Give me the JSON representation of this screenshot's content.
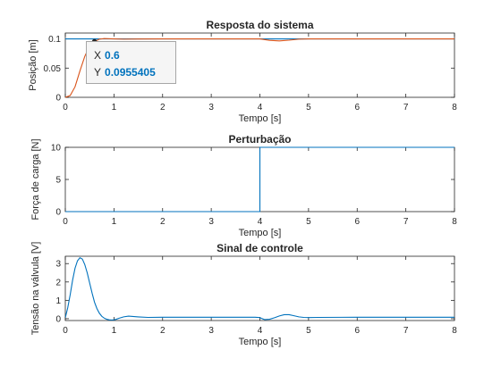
{
  "chart_data": [
    {
      "type": "line",
      "title": "Resposta do sistema",
      "xlabel": "Tempo [s]",
      "ylabel": "Posição [m]",
      "xlim": [
        0,
        8
      ],
      "ylim": [
        0,
        0.11
      ],
      "xticks": [
        0,
        1,
        2,
        3,
        4,
        5,
        6,
        7,
        8
      ],
      "yticks": [
        0,
        0.05,
        0.1
      ],
      "ytick_labels": [
        "0",
        "0.05",
        "0.1"
      ],
      "grid": false,
      "series": [
        {
          "color": "#0072bd",
          "x": [
            0,
            8
          ],
          "y": [
            0.1,
            0.1
          ]
        },
        {
          "color": "#d95319",
          "x": [
            0,
            0.1,
            0.2,
            0.3,
            0.4,
            0.5,
            0.6,
            0.7,
            0.8,
            1.0,
            1.2,
            1.5,
            2.0,
            3.0,
            4.0,
            4.2,
            4.4,
            4.6,
            4.8,
            5.0,
            6.0,
            7.0,
            8.0
          ],
          "y": [
            0,
            0.003,
            0.018,
            0.045,
            0.07,
            0.088,
            0.0955,
            0.0995,
            0.1005,
            0.1,
            0.0995,
            0.0998,
            0.1,
            0.1,
            0.1,
            0.0975,
            0.0965,
            0.0978,
            0.0995,
            0.1,
            0.1,
            0.1,
            0.1
          ]
        }
      ],
      "datatip": {
        "x_label": "X",
        "x_value": "0.6",
        "y_label": "Y",
        "y_value": "0.0955405",
        "x": 0.6,
        "y": 0.0955405
      }
    },
    {
      "type": "line",
      "title": "Perturbação",
      "xlabel": "Tempo [s]",
      "ylabel": "Força de carga [N]",
      "xlim": [
        0,
        8
      ],
      "ylim": [
        0,
        10
      ],
      "xticks": [
        0,
        1,
        2,
        3,
        4,
        5,
        6,
        7,
        8
      ],
      "yticks": [
        0,
        5,
        10
      ],
      "ytick_labels": [
        "0",
        "5",
        "10"
      ],
      "grid": false,
      "series": [
        {
          "color": "#0072bd",
          "x": [
            0,
            4,
            4,
            8
          ],
          "y": [
            0,
            0,
            10,
            10
          ]
        }
      ]
    },
    {
      "type": "line",
      "title": "Sinal de controle",
      "xlabel": "Tempo [s]",
      "ylabel": "Tensão na válvula [V]",
      "xlim": [
        0,
        8
      ],
      "ylim": [
        -0.1,
        3.4
      ],
      "xticks": [
        0,
        1,
        2,
        3,
        4,
        5,
        6,
        7,
        8
      ],
      "yticks": [
        0,
        1,
        2,
        3
      ],
      "ytick_labels": [
        "0",
        "1",
        "2",
        "3"
      ],
      "grid": false,
      "series": [
        {
          "color": "#0072bd",
          "x": [
            0,
            0.05,
            0.1,
            0.15,
            0.2,
            0.25,
            0.3,
            0.35,
            0.4,
            0.45,
            0.5,
            0.55,
            0.6,
            0.65,
            0.7,
            0.75,
            0.8,
            0.85,
            0.9,
            0.95,
            1.0,
            1.05,
            1.1,
            1.2,
            1.3,
            1.5,
            1.7,
            2.0,
            3.0,
            3.9,
            4.0,
            4.05,
            4.1,
            4.2,
            4.3,
            4.4,
            4.5,
            4.6,
            4.7,
            4.8,
            4.9,
            5.0,
            5.2,
            6.0,
            7.0,
            8.0
          ],
          "y": [
            0.05,
            0.6,
            1.3,
            2.1,
            2.75,
            3.15,
            3.32,
            3.25,
            2.95,
            2.5,
            1.95,
            1.4,
            0.9,
            0.55,
            0.3,
            0.13,
            0.03,
            -0.03,
            -0.06,
            -0.07,
            -0.06,
            -0.03,
            0.02,
            0.1,
            0.14,
            0.1,
            0.07,
            0.08,
            0.08,
            0.08,
            0.06,
            0.0,
            -0.05,
            -0.03,
            0.05,
            0.15,
            0.22,
            0.22,
            0.16,
            0.1,
            0.07,
            0.06,
            0.07,
            0.08,
            0.08,
            0.08
          ]
        }
      ]
    }
  ]
}
